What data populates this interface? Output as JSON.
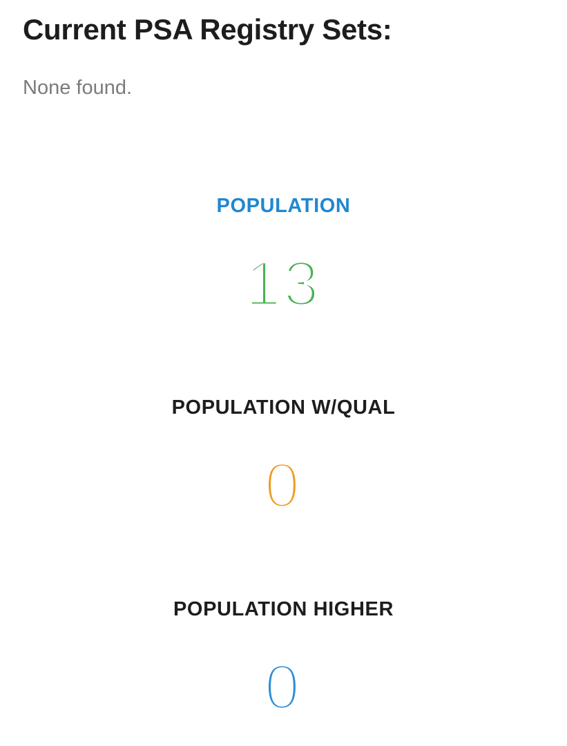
{
  "page": {
    "title": "Current PSA Registry Sets:",
    "empty_message": "None found."
  },
  "colors": {
    "heading_text": "#1d1d1d",
    "muted_text": "#7b7b7b",
    "background": "#ffffff"
  },
  "stats": [
    {
      "label": "POPULATION",
      "value": "13",
      "label_color": "#2187cf",
      "value_color": "#4bb153"
    },
    {
      "label": "POPULATION W/QUAL",
      "value": "0",
      "label_color": "#1d1d1d",
      "value_color": "#f09c27"
    },
    {
      "label": "POPULATION HIGHER",
      "value": "0",
      "label_color": "#1d1d1d",
      "value_color": "#2e8fd5"
    }
  ]
}
